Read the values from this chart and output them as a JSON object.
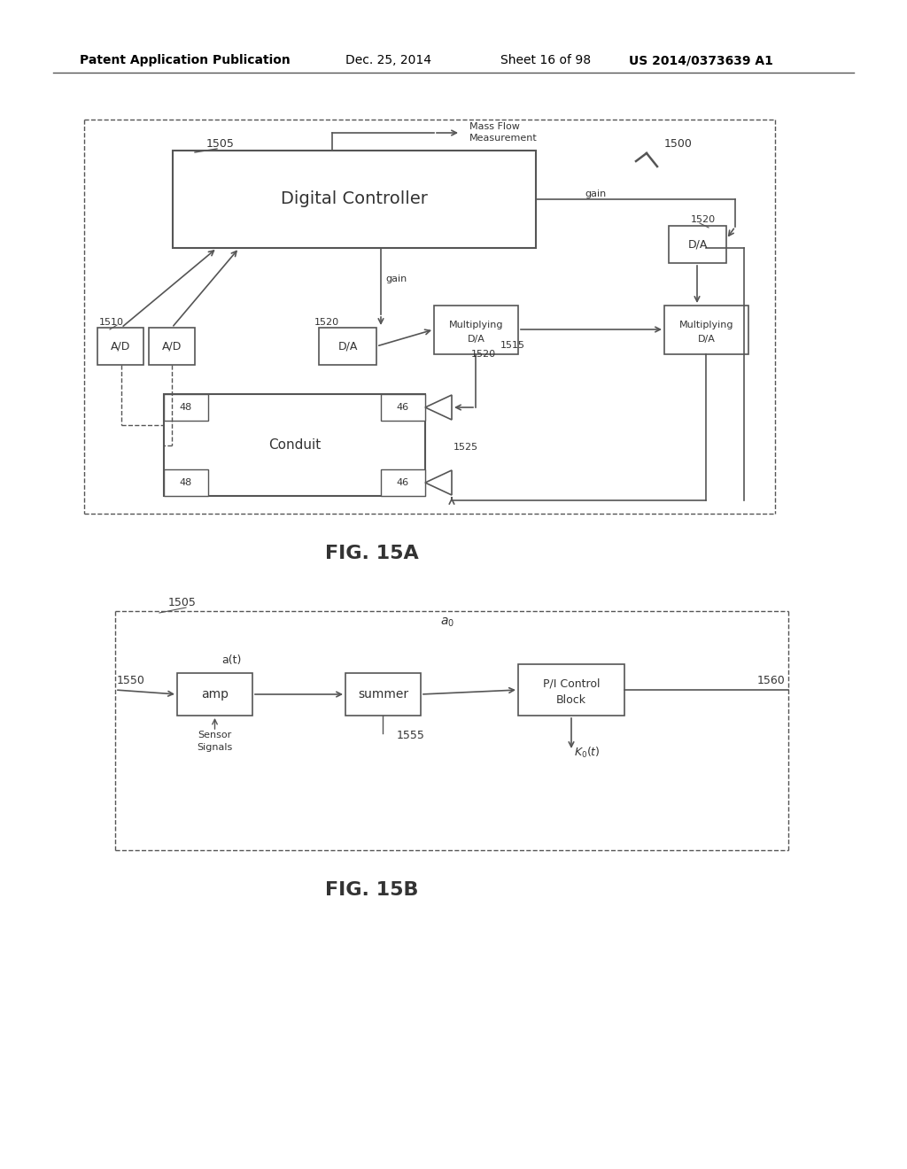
{
  "bg_color": "#ffffff",
  "header_text": "Patent Application Publication",
  "header_date": "Dec. 25, 2014",
  "header_sheet": "Sheet 16 of 98",
  "header_patent": "US 2014/0373639 A1",
  "fig15a_label": "FIG. 15A",
  "fig15b_label": "FIG. 15B",
  "line_color": "#555555",
  "text_color": "#333333"
}
